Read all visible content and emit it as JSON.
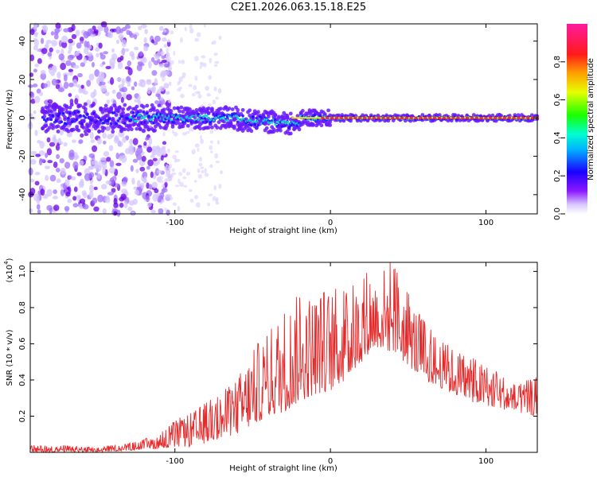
{
  "title": "C2E1.2026.063.15.18.E25",
  "chart_data": [
    {
      "type": "heatmap",
      "title": "C2E1.2026.063.15.18.E25",
      "xlabel": "Height of straight line (km)",
      "ylabel": "Frequency (Hz)",
      "xlim": [
        -193,
        133
      ],
      "ylim": [
        -50,
        49
      ],
      "xticks": [
        -100,
        0,
        100
      ],
      "yticks": [
        -40,
        -20,
        0,
        20,
        40
      ],
      "colorbar": {
        "label": "Normalized spectral amplitude",
        "range": [
          0,
          1
        ],
        "ticks": [
          0.0,
          0.2,
          0.4,
          0.6,
          0.8
        ],
        "colormap": [
          "#ffffff",
          "#c8b0ff",
          "#7f00ff",
          "#0000ff",
          "#00ffff",
          "#00ff00",
          "#ffff00",
          "#ff8000",
          "#ff0000",
          "#ff00ff"
        ]
      },
      "description_points": [
        {
          "x": -190,
          "freq_spread": 48,
          "freq_center": 0
        },
        {
          "x": -120,
          "freq_spread": 45,
          "freq_center": 0
        },
        {
          "x": -110,
          "freq_spread": 8,
          "freq_center": 2
        },
        {
          "x": -60,
          "freq_spread": 6,
          "freq_center": 0
        },
        {
          "x": -30,
          "freq_spread": 5,
          "freq_center": -3
        },
        {
          "x": 0,
          "freq_spread": 2,
          "freq_center": 0
        },
        {
          "x": 133,
          "freq_spread": 2,
          "freq_center": 0
        }
      ]
    },
    {
      "type": "line",
      "title": "",
      "xlabel": "Height of straight line (km)",
      "ylabel": "SNR (10 * v/v)",
      "yscale_label": "(x10",
      "yscale_exp": "4",
      "xlim": [
        -193,
        133
      ],
      "ylim": [
        0,
        1.05
      ],
      "xticks": [
        -100,
        0,
        100
      ],
      "yticks": [
        0.2,
        0.4,
        0.6,
        0.8,
        1.0
      ],
      "ytick_labels": [
        "0.2",
        "0.4",
        "0.6",
        "0.8",
        "1.0"
      ],
      "color": "#e8292a",
      "envelope": {
        "x": [
          -193,
          -170,
          -150,
          -130,
          -110,
          -100,
          -90,
          -80,
          -70,
          -60,
          -50,
          -40,
          -30,
          -20,
          -10,
          0,
          10,
          20,
          25,
          30,
          40,
          50,
          60,
          70,
          80,
          90,
          100,
          110,
          120,
          133
        ],
        "low": [
          0.0,
          0.0,
          0.0,
          0.01,
          0.02,
          0.03,
          0.03,
          0.05,
          0.08,
          0.1,
          0.15,
          0.2,
          0.22,
          0.28,
          0.32,
          0.34,
          0.4,
          0.5,
          0.55,
          0.58,
          0.55,
          0.48,
          0.4,
          0.36,
          0.32,
          0.28,
          0.26,
          0.24,
          0.22,
          0.2
        ],
        "high": [
          0.04,
          0.04,
          0.03,
          0.05,
          0.1,
          0.18,
          0.22,
          0.28,
          0.33,
          0.42,
          0.58,
          0.68,
          0.82,
          0.88,
          0.9,
          0.92,
          0.9,
          0.95,
          1.03,
          0.99,
          1.08,
          0.88,
          0.74,
          0.62,
          0.58,
          0.54,
          0.48,
          0.44,
          0.38,
          0.42
        ]
      }
    }
  ]
}
